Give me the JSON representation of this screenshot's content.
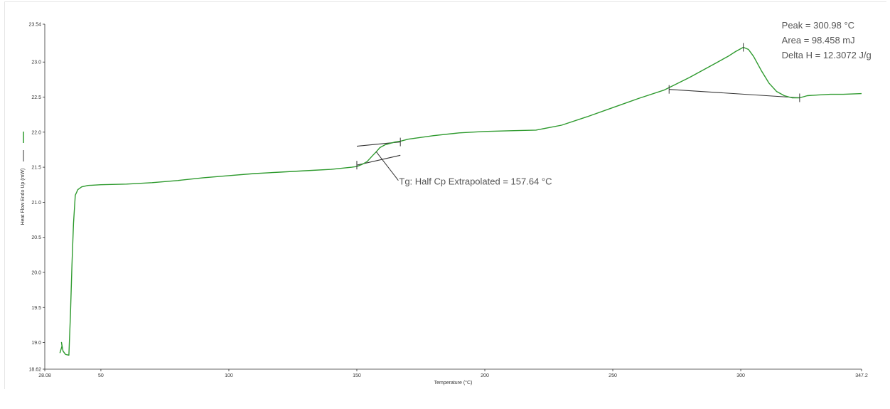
{
  "chart_data": {
    "type": "line",
    "title": "",
    "xlabel": "Temperature (°C)",
    "ylabel": "Heat Flow Endo Up (mW)",
    "xlim": [
      28.08,
      347.2
    ],
    "ylim": [
      18.62,
      23.54
    ],
    "x_ticks": [
      {
        "value": 28.08,
        "label": "28.08"
      },
      {
        "value": 50,
        "label": "50"
      },
      {
        "value": 100,
        "label": "100"
      },
      {
        "value": 150,
        "label": "150"
      },
      {
        "value": 200,
        "label": "200"
      },
      {
        "value": 250,
        "label": "250"
      },
      {
        "value": 300,
        "label": "300"
      },
      {
        "value": 347.2,
        "label": "347.2"
      }
    ],
    "y_ticks": [
      {
        "value": 18.62,
        "label": "18.62"
      },
      {
        "value": 19.0,
        "label": "19.0"
      },
      {
        "value": 19.5,
        "label": "19.5"
      },
      {
        "value": 20.0,
        "label": "20.0"
      },
      {
        "value": 20.5,
        "label": "20.5"
      },
      {
        "value": 21.0,
        "label": "21.0"
      },
      {
        "value": 21.5,
        "label": "21.5"
      },
      {
        "value": 22.0,
        "label": "22.0"
      },
      {
        "value": 22.5,
        "label": "22.5"
      },
      {
        "value": 23.0,
        "label": "23.0"
      },
      {
        "value": 23.54,
        "label": "23.54"
      }
    ],
    "grid": false,
    "series": [
      {
        "color": "#2e9a2e",
        "x": [
          34.0,
          34.8,
          34.6,
          35.2,
          36.2,
          37.5,
          38.1,
          38.7,
          39.3,
          40.0,
          41.0,
          42.5,
          45.0,
          50,
          60,
          70,
          80,
          90,
          100,
          110,
          120,
          130,
          140,
          148,
          150,
          152,
          154,
          156,
          157.6,
          159,
          161,
          163,
          165,
          167,
          170,
          180,
          190,
          200,
          210,
          220,
          230,
          240,
          250,
          260,
          270,
          280,
          290,
          295,
          298,
          301,
          303,
          305,
          308,
          311,
          314,
          317,
          320,
          323,
          326,
          330,
          335,
          340,
          347.2
        ],
        "y": [
          18.85,
          18.95,
          19.0,
          18.88,
          18.83,
          18.82,
          19.4,
          20.1,
          20.7,
          21.1,
          21.18,
          21.22,
          21.24,
          21.25,
          21.26,
          21.28,
          21.31,
          21.35,
          21.38,
          21.41,
          21.43,
          21.45,
          21.47,
          21.5,
          21.51,
          21.54,
          21.58,
          21.66,
          21.72,
          21.78,
          21.82,
          21.84,
          21.86,
          21.87,
          21.9,
          21.95,
          21.99,
          22.01,
          22.02,
          22.03,
          22.1,
          22.22,
          22.35,
          22.48,
          22.6,
          22.78,
          22.98,
          23.08,
          23.15,
          23.21,
          23.18,
          23.08,
          22.88,
          22.7,
          22.58,
          22.52,
          22.49,
          22.49,
          22.52,
          22.53,
          22.54,
          22.54,
          22.55
        ]
      }
    ],
    "baselines": [
      {
        "color": "#333333",
        "x": [
          150,
          167
        ],
        "y": [
          21.8,
          21.86
        ]
      },
      {
        "color": "#333333",
        "x": [
          150,
          167
        ],
        "y": [
          21.53,
          21.67
        ]
      },
      {
        "color": "#333333",
        "x": [
          272,
          323
        ],
        "y": [
          22.61,
          22.49
        ]
      }
    ],
    "markers": [
      {
        "x": 150,
        "y": 21.53
      },
      {
        "x": 167,
        "y": 21.86
      },
      {
        "x": 272,
        "y": 22.61
      },
      {
        "x": 301,
        "y": 23.21
      },
      {
        "x": 323,
        "y": 22.49
      }
    ],
    "annotations": [
      {
        "lines": [
          "Tg: Half Cp Extrapolated = 157.64 °C"
        ],
        "anchor": {
          "x": 157.6,
          "y": 21.72
        },
        "label_at": {
          "x": 166.5,
          "y": 21.25
        }
      },
      {
        "lines": [
          "Peak = 300.98 °C",
          "Area = 98.458 mJ",
          "Delta H = 12.3072 J/g"
        ],
        "label_at": {
          "x": 316,
          "y": 23.48
        }
      }
    ],
    "legend": {
      "position": "left-rotated",
      "entries": [
        {
          "color": "#2e9a2e"
        },
        {
          "color": "#333333"
        }
      ]
    }
  }
}
